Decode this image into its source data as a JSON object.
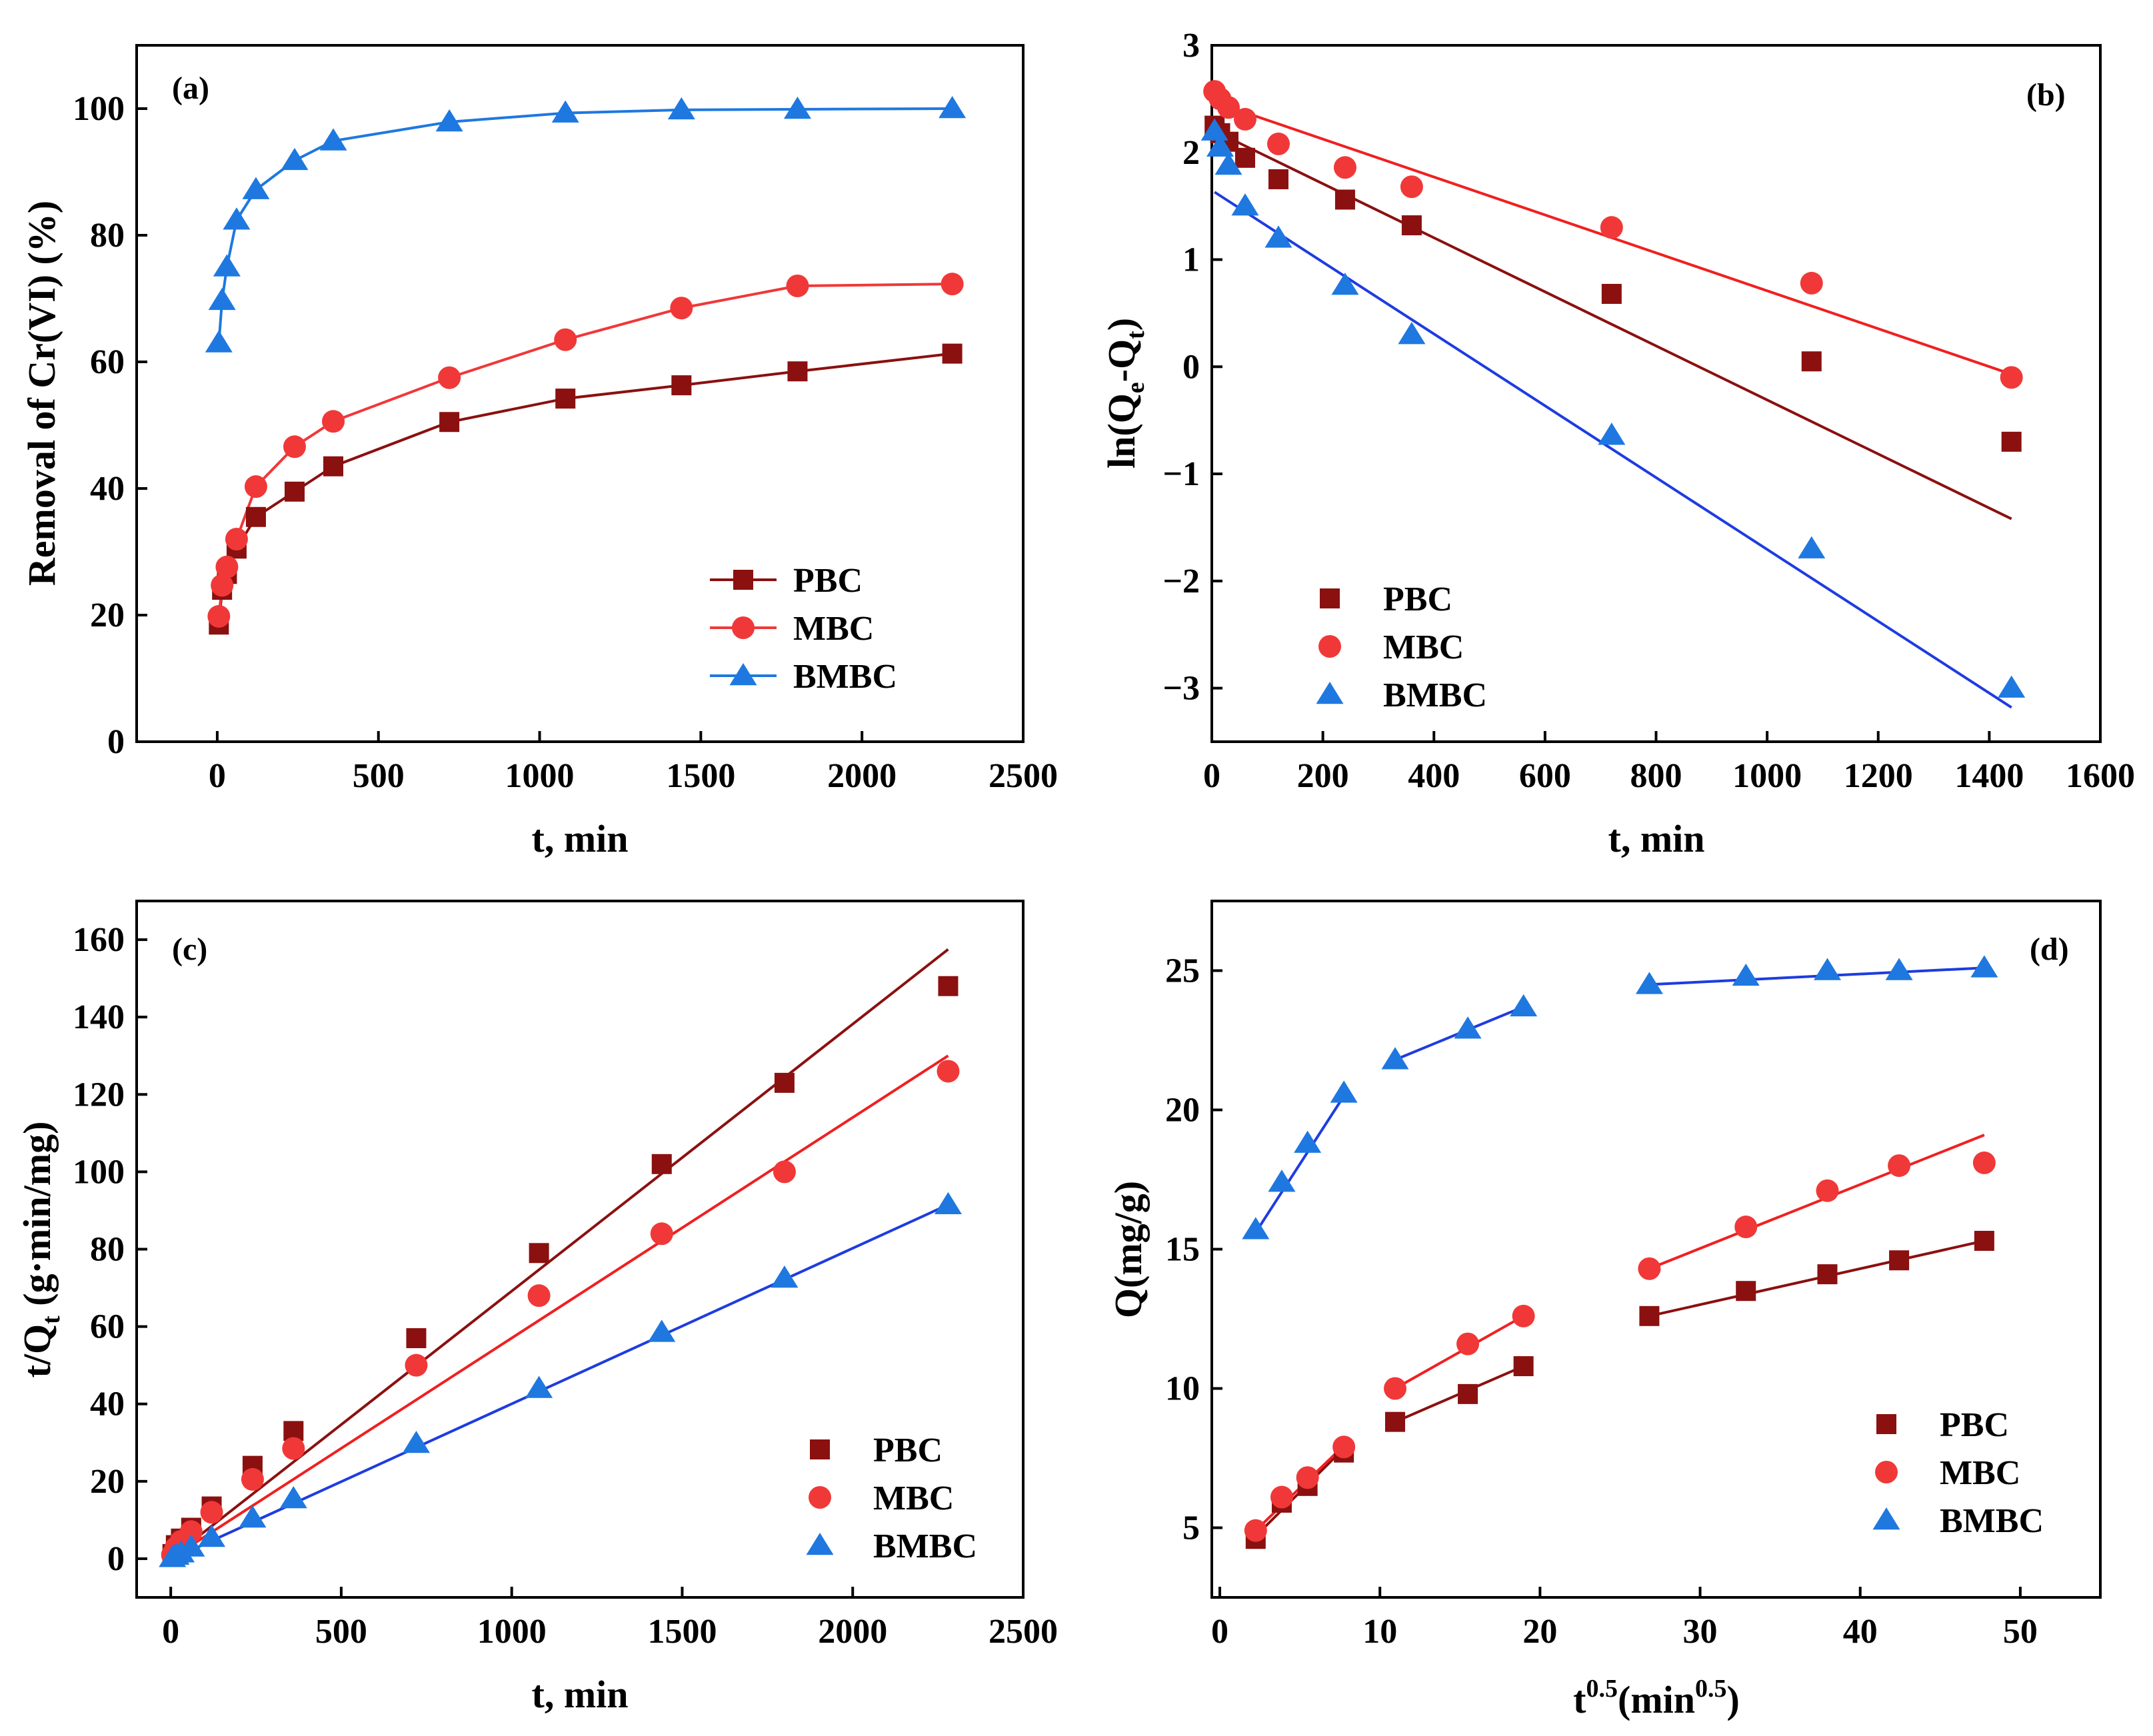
{
  "colors": {
    "PBC": "#8B1010",
    "MBC": "#F03838",
    "BMBC": "#1E78E0",
    "fitPBC": "#8B1010",
    "fitMBC": "#F02020",
    "fitBMBC": "#1E3CE0"
  },
  "chart_data": [
    {
      "id": "a",
      "type": "line",
      "panel_label": "(a)",
      "xlabel": "t, min",
      "ylabel": "Removal of Cr(VI) (%)",
      "xlim": [
        -250,
        2500
      ],
      "ylim": [
        0,
        110
      ],
      "xticks": [
        0,
        500,
        1000,
        1500,
        2000,
        2500
      ],
      "yticks": [
        0,
        20,
        40,
        60,
        80,
        100
      ],
      "legend_position": "bottom-right",
      "legend_style": "line-marker",
      "series": [
        {
          "name": "PBC",
          "marker": "square",
          "x": [
            5,
            15,
            30,
            60,
            120,
            240,
            360,
            720,
            1080,
            1440,
            1800,
            2280
          ],
          "y": [
            18.5,
            24,
            26.5,
            30.5,
            35.5,
            39.5,
            43.5,
            50.5,
            54.2,
            56.3,
            58.5,
            61.3
          ]
        },
        {
          "name": "MBC",
          "marker": "circle",
          "x": [
            5,
            15,
            30,
            60,
            120,
            240,
            360,
            720,
            1080,
            1440,
            1800,
            2280
          ],
          "y": [
            19.8,
            24.7,
            27.6,
            32,
            40.3,
            46.6,
            50.6,
            57.5,
            63.5,
            68.5,
            72,
            72.3
          ]
        },
        {
          "name": "BMBC",
          "marker": "triangle",
          "x": [
            5,
            15,
            30,
            60,
            120,
            240,
            360,
            720,
            1080,
            1440,
            1800,
            2280
          ],
          "y": [
            63,
            69.7,
            75,
            82.4,
            87.2,
            91.8,
            94.9,
            97.9,
            99.3,
            99.8,
            99.9,
            100
          ]
        }
      ]
    },
    {
      "id": "b",
      "type": "scatter",
      "panel_label": "(b)",
      "xlabel": "t, min",
      "ylabel": "ln(Qe-Qt)",
      "ylabel_main": "ln(Q",
      "ylabel_sub1": "e",
      "ylabel_mid": "-Q",
      "ylabel_sub2": "t",
      "ylabel_end": ")",
      "xlim": [
        0,
        1600
      ],
      "ylim": [
        -3.5,
        3
      ],
      "xticks": [
        0,
        200,
        400,
        600,
        800,
        1000,
        1200,
        1400,
        1600
      ],
      "yticks": [
        -3,
        -2,
        -1,
        0,
        1,
        2,
        3
      ],
      "ytick_labels": [
        "−3",
        "−2",
        "−1",
        "0",
        "1",
        "2",
        "3"
      ],
      "legend_position": "bottom-left",
      "legend_style": "marker",
      "series": [
        {
          "name": "PBC",
          "marker": "square",
          "x": [
            5,
            15,
            30,
            60,
            120,
            240,
            360,
            720,
            1080,
            1440
          ],
          "y": [
            2.25,
            2.18,
            2.1,
            1.95,
            1.75,
            1.56,
            1.32,
            0.68,
            0.05,
            -0.7
          ],
          "fit": [
            2.2,
            -1.42
          ]
        },
        {
          "name": "MBC",
          "marker": "circle",
          "x": [
            5,
            15,
            30,
            60,
            120,
            240,
            360,
            720,
            1080,
            1440
          ],
          "y": [
            2.57,
            2.5,
            2.42,
            2.31,
            2.08,
            1.86,
            1.68,
            1.3,
            0.78,
            -0.1
          ],
          "fit": [
            2.47,
            -0.07
          ]
        },
        {
          "name": "BMBC",
          "marker": "triangle",
          "x": [
            5,
            15,
            30,
            60,
            120,
            240,
            360,
            720,
            1080,
            1440
          ],
          "y": [
            2.2,
            2.05,
            1.88,
            1.5,
            1.2,
            0.76,
            0.3,
            -0.64,
            -1.7,
            -3.0
          ],
          "fit": [
            1.63,
            -3.18
          ]
        }
      ]
    },
    {
      "id": "c",
      "type": "scatter",
      "panel_label": "(c)",
      "xlabel": "t, min",
      "ylabel": "t/Qt (g·min/mg)",
      "ylabel_main": "t/Q",
      "ylabel_sub1": "t",
      "ylabel_end": " (g·min/mg)",
      "xlim": [
        -100,
        2500
      ],
      "ylim": [
        -10,
        170
      ],
      "xticks": [
        0,
        500,
        1000,
        1500,
        2000,
        2500
      ],
      "yticks": [
        0,
        20,
        40,
        60,
        80,
        100,
        120,
        140,
        160
      ],
      "legend_position": "bottom-right",
      "legend_style": "marker",
      "series": [
        {
          "name": "PBC",
          "marker": "square",
          "x": [
            5,
            15,
            30,
            60,
            120,
            240,
            360,
            720,
            1080,
            1440,
            1800,
            2280
          ],
          "y": [
            1.2,
            3.5,
            5.2,
            8,
            13.5,
            24,
            33,
            57,
            79,
            102,
            123,
            148
          ],
          "fit": [
            0.5,
            157.5
          ]
        },
        {
          "name": "MBC",
          "marker": "circle",
          "x": [
            5,
            15,
            30,
            60,
            120,
            240,
            360,
            720,
            1080,
            1440,
            1800,
            2280
          ],
          "y": [
            1,
            2.8,
            4.5,
            7,
            12,
            20.5,
            28.5,
            50,
            68,
            84,
            100,
            126
          ],
          "fit": [
            0.3,
            130
          ]
        },
        {
          "name": "BMBC",
          "marker": "triangle",
          "x": [
            5,
            15,
            30,
            60,
            120,
            240,
            360,
            720,
            1080,
            1440,
            1800,
            2280
          ],
          "y": [
            0.3,
            0.9,
            1.5,
            3,
            5.5,
            10.5,
            15.5,
            29.8,
            44,
            58.5,
            72.5,
            91.5
          ],
          "fit": [
            0,
            91.5
          ]
        }
      ]
    },
    {
      "id": "d",
      "type": "scatter",
      "panel_label": "(d)",
      "xlabel": "t0.5(min0.5)",
      "xlabel_main": "t",
      "xlabel_sup1": "0.5",
      "xlabel_mid": "(min",
      "xlabel_sup2": "0.5",
      "xlabel_end": ")",
      "ylabel": "Q(mg/g)",
      "xlim": [
        -0.5,
        55
      ],
      "ylim": [
        2.5,
        27.5
      ],
      "xticks": [
        0,
        10,
        20,
        30,
        40,
        50
      ],
      "yticks": [
        5,
        10,
        15,
        20,
        25
      ],
      "legend_position": "bottom-right",
      "legend_style": "marker",
      "series": [
        {
          "name": "PBC",
          "marker": "square",
          "x": [
            2.24,
            3.87,
            5.48,
            7.75,
            10.95,
            15.49,
            18.97,
            26.83,
            32.86,
            37.95,
            42.43,
            47.75
          ],
          "y": [
            4.6,
            5.9,
            6.5,
            7.7,
            8.8,
            9.8,
            10.8,
            12.6,
            13.5,
            14.1,
            14.6,
            15.3
          ],
          "segments": [
            [
              2.24,
              4.7,
              7.75,
              7.85
            ],
            [
              10.95,
              8.8,
              18.97,
              10.8
            ],
            [
              26.83,
              12.6,
              47.75,
              15.3
            ]
          ]
        },
        {
          "name": "MBC",
          "marker": "circle",
          "x": [
            2.24,
            3.87,
            5.48,
            7.75,
            10.95,
            15.49,
            18.97,
            26.83,
            32.86,
            37.95,
            42.43,
            47.75
          ],
          "y": [
            4.9,
            6.1,
            6.8,
            7.9,
            10,
            11.6,
            12.6,
            14.3,
            15.8,
            17.1,
            18,
            18.1
          ],
          "segments": [
            [
              2.24,
              4.9,
              7.75,
              7.95
            ],
            [
              10.95,
              10,
              18.97,
              12.6
            ],
            [
              26.83,
              14.3,
              47.75,
              19.1
            ]
          ]
        },
        {
          "name": "BMBC",
          "marker": "triangle",
          "x": [
            2.24,
            3.87,
            5.48,
            7.75,
            10.95,
            15.49,
            18.97,
            26.83,
            32.86,
            37.95,
            42.43,
            47.75
          ],
          "y": [
            15.7,
            17.4,
            18.8,
            20.6,
            21.8,
            22.9,
            23.7,
            24.5,
            24.8,
            25,
            25,
            25.1
          ],
          "segments": [
            [
              2.24,
              15.6,
              7.75,
              20.5
            ],
            [
              10.95,
              21.8,
              18.97,
              23.7
            ],
            [
              26.83,
              24.5,
              47.75,
              25.1
            ]
          ]
        }
      ]
    }
  ]
}
